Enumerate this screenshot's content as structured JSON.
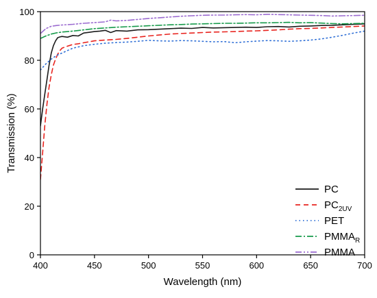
{
  "chart_data": {
    "type": "line",
    "xlabel": "Wavelength (nm)",
    "ylabel": "Transmission (%)",
    "xlim": [
      400,
      700
    ],
    "ylim": [
      0,
      100
    ],
    "xticks": [
      400,
      450,
      500,
      550,
      600,
      650,
      700
    ],
    "yticks": [
      0,
      20,
      40,
      60,
      80,
      100
    ],
    "grid": false,
    "legend_position": "bottom-right",
    "series": [
      {
        "name": "PC",
        "name_main": "PC",
        "name_sub": "",
        "color": "#1a1a1a",
        "dash": "solid",
        "x": [
          400,
          402,
          404,
          406,
          408,
          410,
          412,
          414,
          416,
          418,
          420,
          425,
          430,
          435,
          440,
          445,
          450,
          455,
          460,
          465,
          470,
          480,
          490,
          500,
          510,
          520,
          530,
          540,
          550,
          560,
          570,
          580,
          590,
          600,
          610,
          620,
          630,
          640,
          650,
          660,
          670,
          680,
          690,
          700
        ],
        "y": [
          53,
          60,
          66,
          72,
          78,
          83,
          86,
          88,
          89.3,
          89.6,
          89.8,
          89.5,
          90.2,
          90.0,
          91.2,
          91.5,
          91.8,
          92.0,
          92.3,
          91.4,
          92.2,
          92.0,
          92.5,
          92.6,
          92.8,
          93.0,
          93.2,
          93.1,
          93.5,
          93.3,
          93.4,
          93.5,
          93.6,
          93.5,
          93.8,
          93.9,
          93.7,
          94.0,
          94.1,
          94.3,
          94.4,
          94.6,
          94.8,
          95.0
        ]
      },
      {
        "name": "PC2UV",
        "name_main": "PC",
        "name_sub": "2UV",
        "color": "#e8231e",
        "dash": "7,5",
        "x": [
          400,
          402,
          404,
          406,
          408,
          410,
          412,
          414,
          416,
          418,
          420,
          425,
          430,
          435,
          440,
          445,
          450,
          460,
          470,
          480,
          490,
          500,
          510,
          520,
          530,
          540,
          550,
          560,
          570,
          580,
          590,
          600,
          610,
          620,
          630,
          640,
          650,
          660,
          670,
          680,
          690,
          700
        ],
        "y": [
          31,
          42,
          53,
          62,
          69,
          74,
          78,
          80.5,
          82.5,
          84,
          85,
          85.8,
          86.5,
          86.8,
          87.2,
          87.6,
          88.0,
          88.3,
          88.6,
          89.0,
          89.5,
          90.0,
          90.4,
          90.8,
          91.0,
          91.2,
          91.4,
          91.6,
          91.7,
          91.8,
          92.0,
          92.1,
          92.3,
          92.5,
          92.8,
          93.0,
          93.1,
          93.3,
          93.5,
          93.7,
          93.9,
          94.1
        ]
      },
      {
        "name": "PET",
        "name_main": "PET",
        "name_sub": "",
        "color": "#2f6fd6",
        "dash": "1.5,4",
        "x": [
          400,
          405,
          410,
          415,
          420,
          425,
          430,
          440,
          450,
          460,
          470,
          480,
          490,
          500,
          510,
          520,
          530,
          540,
          550,
          560,
          570,
          580,
          590,
          600,
          610,
          620,
          630,
          640,
          650,
          660,
          670,
          680,
          690,
          700
        ],
        "y": [
          76,
          78.5,
          80.5,
          82,
          83,
          84,
          85,
          86,
          86.6,
          87.0,
          87.3,
          87.5,
          87.8,
          88.2,
          88.0,
          87.9,
          88.1,
          88.0,
          87.8,
          87.6,
          87.7,
          87.2,
          87.6,
          87.9,
          88.1,
          88.0,
          87.8,
          88.0,
          88.3,
          88.8,
          89.5,
          90.3,
          91.2,
          92.0
        ]
      },
      {
        "name": "PMMAR",
        "name_main": "PMMA",
        "name_sub": "R",
        "color": "#169a4a",
        "dash": "9,3,2,3",
        "x": [
          400,
          405,
          410,
          415,
          420,
          430,
          440,
          450,
          460,
          470,
          480,
          490,
          500,
          510,
          520,
          530,
          540,
          550,
          560,
          570,
          580,
          590,
          600,
          610,
          620,
          630,
          640,
          650,
          660,
          670,
          680,
          690,
          700
        ],
        "y": [
          89,
          90,
          90.8,
          91.3,
          91.6,
          92.0,
          92.5,
          93.0,
          93.3,
          93.6,
          93.8,
          94.0,
          94.2,
          94.4,
          94.6,
          94.7,
          94.9,
          95.0,
          95.1,
          95.2,
          95.2,
          95.3,
          95.4,
          95.4,
          95.5,
          95.6,
          95.4,
          95.5,
          95.3,
          95.1,
          95.0,
          95.1,
          95.2
        ]
      },
      {
        "name": "PMMA",
        "name_main": "PMMA",
        "name_sub": "",
        "color": "#9b6bd0",
        "dash": "9,3,2,3,2,3",
        "x": [
          400,
          405,
          410,
          415,
          420,
          430,
          440,
          450,
          460,
          465,
          470,
          480,
          490,
          500,
          510,
          520,
          530,
          540,
          550,
          560,
          570,
          580,
          590,
          600,
          610,
          620,
          630,
          640,
          650,
          660,
          670,
          680,
          690,
          700
        ],
        "y": [
          91,
          93,
          94,
          94.3,
          94.5,
          94.8,
          95.2,
          95.5,
          95.8,
          96.5,
          96.2,
          96.4,
          96.8,
          97.2,
          97.5,
          97.8,
          98.1,
          98.3,
          98.5,
          98.6,
          98.6,
          98.7,
          98.8,
          98.7,
          98.9,
          98.8,
          98.7,
          98.6,
          98.5,
          98.4,
          98.2,
          98.3,
          98.4,
          98.5
        ]
      }
    ]
  }
}
